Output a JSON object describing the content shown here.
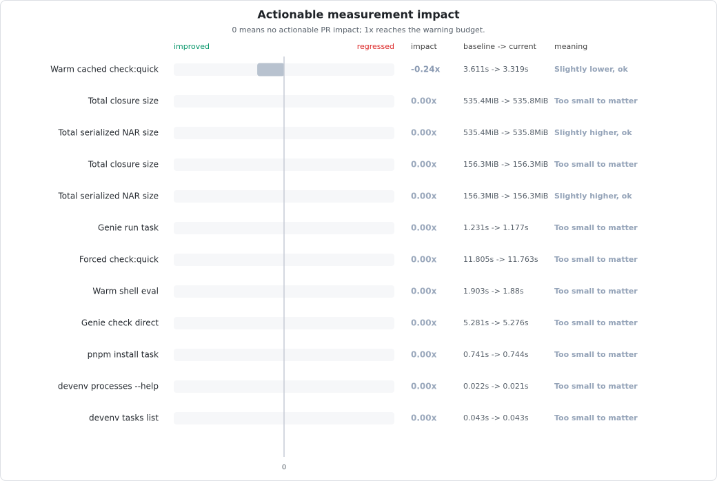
{
  "chart_data": {
    "type": "bar",
    "orientation": "horizontal",
    "title": "Actionable measurement impact",
    "subtitle": "0 means no actionable PR impact; 1x reaches the warning budget.",
    "left_label": "improved",
    "right_label": "regressed",
    "columns": [
      "impact",
      "baseline -> current",
      "meaning"
    ],
    "categories": [
      "Warm cached check:quick",
      "Total closure size",
      "Total serialized NAR size",
      "Total closure size",
      "Total serialized NAR size",
      "Genie run task",
      "Forced check:quick",
      "Warm shell eval",
      "Genie check direct",
      "pnpm install task",
      "devenv processes --help",
      "devenv tasks list"
    ],
    "values": [
      -0.24,
      0,
      0,
      0,
      0,
      0,
      0,
      0,
      0,
      0,
      0,
      0
    ],
    "value_labels": [
      "-0.24x",
      "0.00x",
      "0.00x",
      "0.00x",
      "0.00x",
      "0.00x",
      "0.00x",
      "0.00x",
      "0.00x",
      "0.00x",
      "0.00x",
      "0.00x"
    ],
    "baseline_current": [
      "3.611s -> 3.319s",
      "535.4MiB -> 535.8MiB",
      "535.4MiB -> 535.8MiB",
      "156.3MiB -> 156.3MiB",
      "156.3MiB -> 156.3MiB",
      "1.231s -> 1.177s",
      "11.805s -> 11.763s",
      "1.903s -> 1.88s",
      "5.281s -> 5.276s",
      "0.741s -> 0.744s",
      "0.022s -> 0.021s",
      "0.043s -> 0.043s"
    ],
    "meaning": [
      "Slightly lower, ok",
      "Too small to matter",
      "Slightly higher, ok",
      "Too small to matter",
      "Slightly higher, ok",
      "Too small to matter",
      "Too small to matter",
      "Too small to matter",
      "Too small to matter",
      "Too small to matter",
      "Too small to matter",
      "Too small to matter"
    ],
    "color": "#b8c2cf",
    "xlim": [
      -1,
      1
    ],
    "xticks": [
      0
    ]
  }
}
